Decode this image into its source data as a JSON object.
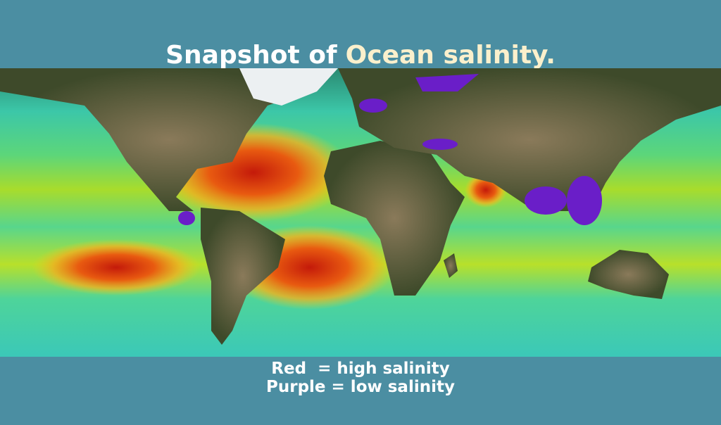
{
  "header": {
    "title_start": "Snapshot of",
    "title_highlight": "Ocean salinity."
  },
  "caption": {
    "line1": "Red  = high salinity",
    "line2": "Purple = low salinity"
  }
}
